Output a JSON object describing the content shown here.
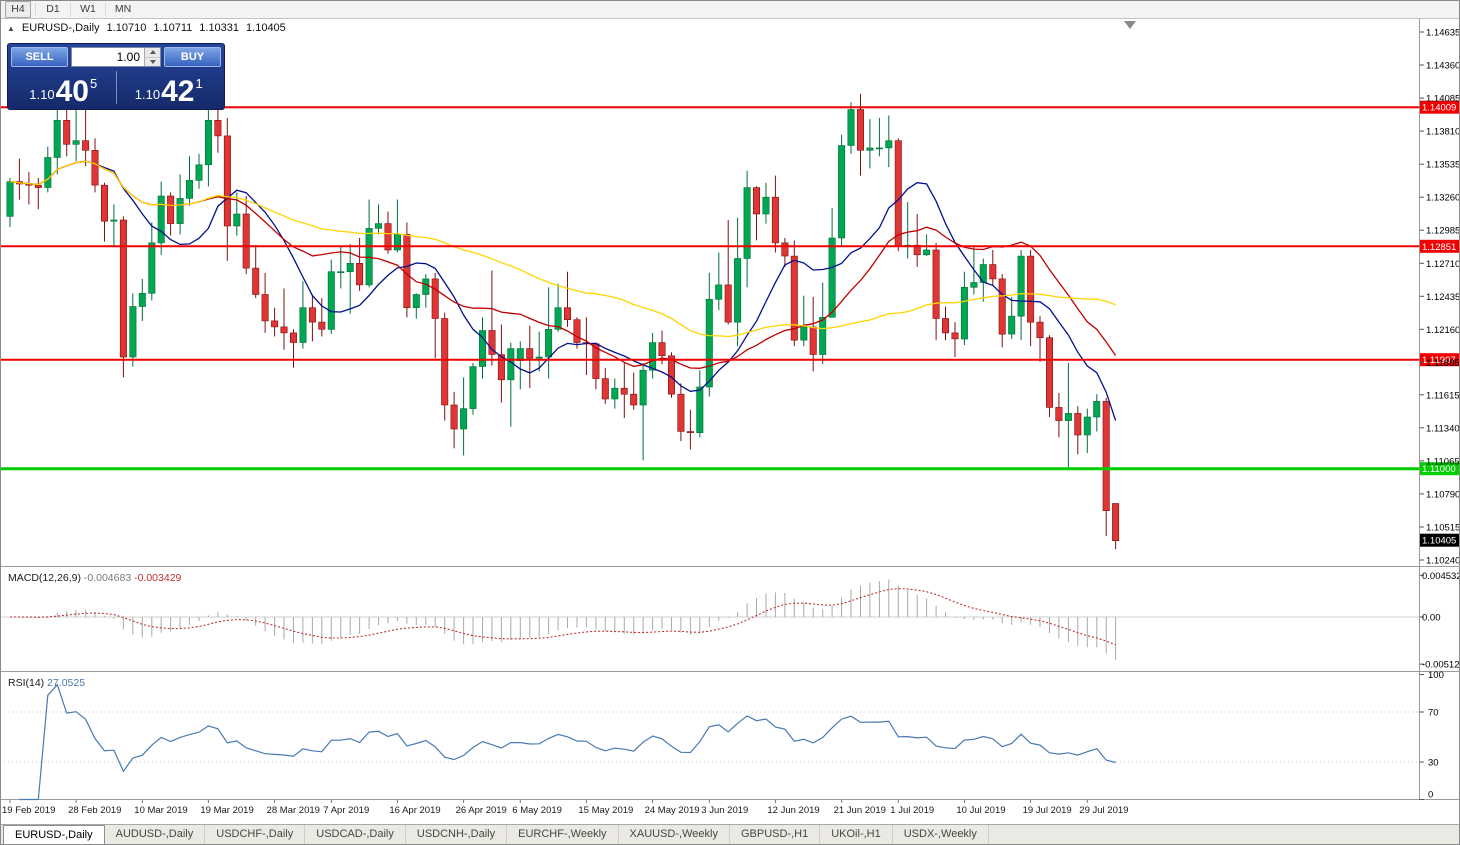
{
  "toolbar": {
    "timeframes": [
      "H4",
      "D1",
      "W1",
      "MN"
    ]
  },
  "chart_header": {
    "collapse_icon": "▲",
    "symbol": "EURUSD-,Daily",
    "open": "1.10710",
    "high": "1.10711",
    "low": "1.10331",
    "close": "1.10405"
  },
  "one_click": {
    "sell_label": "SELL",
    "buy_label": "BUY",
    "volume": "1.00",
    "sell_price": {
      "base": "1.10",
      "big": "40",
      "sup": "5"
    },
    "buy_price": {
      "base": "1.10",
      "big": "42",
      "sup": "1"
    }
  },
  "price_axis": [
    "1.14635",
    "1.14360",
    "1.14085",
    "1.13810",
    "1.13535",
    "1.13260",
    "1.12985",
    "1.12710",
    "1.12435",
    "1.12160",
    "1.11885",
    "1.11615",
    "1.11340",
    "1.11065",
    "1.10790",
    "1.10515",
    "1.10240"
  ],
  "hlines": [
    {
      "price": 1.14009,
      "label": "1.14009",
      "color": "#f00000",
      "width": 2
    },
    {
      "price": 1.12851,
      "label": "1.12851",
      "color": "#f00000",
      "width": 2
    },
    {
      "price": 1.11907,
      "label": "1.11907",
      "color": "#f00000",
      "width": 2
    },
    {
      "price": 1.11,
      "label": "1.11000",
      "color": "#00ce00",
      "width": 3
    }
  ],
  "current_price_tag": {
    "price": 1.10405,
    "label": "1.10405",
    "bg": "#000000",
    "fg": "#ffffff"
  },
  "indicators": {
    "macd": {
      "label": "MACD(12,26,9)",
      "value_main": "-0.004683",
      "value_signal": "-0.003429",
      "axis_labels": [
        "0.004532",
        "0.00",
        "-0.005122"
      ],
      "fast": 12,
      "slow": 26,
      "signal": 9,
      "histogram_color": "#a9a9a9",
      "signal_color": "#c03030"
    },
    "rsi": {
      "label": "RSI(14)",
      "value": "27.0525",
      "period": 14,
      "axis_labels": [
        "100",
        "70",
        "30",
        "0"
      ],
      "levels": [
        70,
        30
      ],
      "line_color": "#4879b4"
    }
  },
  "time_axis": [
    {
      "i": 0,
      "label": "19 Feb 2019"
    },
    {
      "i": 7,
      "label": "28 Feb 2019"
    },
    {
      "i": 14,
      "label": "10 Mar 2019"
    },
    {
      "i": 21,
      "label": "19 Mar 2019"
    },
    {
      "i": 28,
      "label": "28 Mar 2019"
    },
    {
      "i": 34,
      "label": "7 Apr 2019"
    },
    {
      "i": 41,
      "label": "16 Apr 2019"
    },
    {
      "i": 48,
      "label": "26 Apr 2019"
    },
    {
      "i": 54,
      "label": "6 May 2019"
    },
    {
      "i": 61,
      "label": "15 May 2019"
    },
    {
      "i": 68,
      "label": "24 May 2019"
    },
    {
      "i": 74,
      "label": "3 Jun 2019"
    },
    {
      "i": 81,
      "label": "12 Jun 2019"
    },
    {
      "i": 88,
      "label": "21 Jun 2019"
    },
    {
      "i": 94,
      "label": "1 Jul 2019"
    },
    {
      "i": 101,
      "label": "10 Jul 2019"
    },
    {
      "i": 108,
      "label": "19 Jul 2019"
    },
    {
      "i": 114,
      "label": "29 Jul 2019"
    }
  ],
  "tabs": [
    {
      "label": "EURUSD-,Daily",
      "active": true
    },
    {
      "label": "AUDUSD-,Daily"
    },
    {
      "label": "USDCHF-,Daily"
    },
    {
      "label": "USDCAD-,Daily"
    },
    {
      "label": "USDCNH-,Daily"
    },
    {
      "label": "EURCHF-,Weekly"
    },
    {
      "label": "XAUUSD-,Weekly"
    },
    {
      "label": "GBPUSD-,H1"
    },
    {
      "label": "UKOil-,H1"
    },
    {
      "label": "USDX-,Weekly"
    }
  ],
  "chart_data": {
    "type": "candlestick",
    "symbol": "EURUSD",
    "timeframe": "Daily",
    "y_top": 1.14635,
    "y_bottom": 1.1024,
    "bull_color": "#00a651",
    "bull_edge": "#00703a",
    "bear_color": "#e03535",
    "bear_edge": "#7e1010",
    "ma": [
      {
        "type": "sma",
        "period": 10,
        "color": "#00118c"
      },
      {
        "type": "sma",
        "period": 21,
        "color": "#c00000"
      },
      {
        "type": "sma",
        "period": 50,
        "color": "#ffd400"
      }
    ],
    "candles": [
      [
        "2019.02.19",
        1.131,
        1.1342,
        1.1301,
        1.1339
      ],
      [
        "2019.02.20",
        1.1339,
        1.1358,
        1.1324,
        1.1337
      ],
      [
        "2019.02.21",
        1.1337,
        1.1347,
        1.132,
        1.1336
      ],
      [
        "2019.02.22",
        1.1336,
        1.1342,
        1.1316,
        1.1334
      ],
      [
        "2019.02.25",
        1.1334,
        1.1368,
        1.133,
        1.1359
      ],
      [
        "2019.02.26",
        1.1359,
        1.1404,
        1.1345,
        1.139
      ],
      [
        "2019.02.27",
        1.139,
        1.1403,
        1.136,
        1.137
      ],
      [
        "2019.02.28",
        1.137,
        1.14,
        1.1356,
        1.1373
      ],
      [
        "2019.03.01",
        1.1373,
        1.141,
        1.1352,
        1.1365
      ],
      [
        "2019.03.04",
        1.1365,
        1.1375,
        1.133,
        1.1336
      ],
      [
        "2019.03.05",
        1.1336,
        1.1338,
        1.1289,
        1.1306
      ],
      [
        "2019.03.06",
        1.1306,
        1.132,
        1.1285,
        1.1307
      ],
      [
        "2019.03.07",
        1.1307,
        1.131,
        1.1176,
        1.1193
      ],
      [
        "2019.03.08",
        1.1193,
        1.1246,
        1.1185,
        1.1235
      ],
      [
        "2019.03.11",
        1.1235,
        1.1258,
        1.1223,
        1.1246
      ],
      [
        "2019.03.12",
        1.1246,
        1.1305,
        1.124,
        1.1288
      ],
      [
        "2019.03.13",
        1.1288,
        1.1339,
        1.1278,
        1.1327
      ],
      [
        "2019.03.14",
        1.1327,
        1.133,
        1.1294,
        1.1304
      ],
      [
        "2019.03.15",
        1.1304,
        1.1345,
        1.1295,
        1.1325
      ],
      [
        "2019.03.18",
        1.1325,
        1.136,
        1.1319,
        1.134
      ],
      [
        "2019.03.19",
        1.134,
        1.1362,
        1.1333,
        1.1353
      ],
      [
        "2019.03.20",
        1.1353,
        1.1405,
        1.1335,
        1.139
      ],
      [
        "2019.03.21",
        1.139,
        1.1412,
        1.1363,
        1.1377
      ],
      [
        "2019.03.22",
        1.1377,
        1.1392,
        1.1273,
        1.1302
      ],
      [
        "2019.03.25",
        1.1302,
        1.133,
        1.1294,
        1.1312
      ],
      [
        "2019.03.26",
        1.1312,
        1.1327,
        1.1262,
        1.1267
      ],
      [
        "2019.03.27",
        1.1267,
        1.1286,
        1.1242,
        1.1245
      ],
      [
        "2019.03.28",
        1.1245,
        1.1263,
        1.1213,
        1.1223
      ],
      [
        "2019.03.29",
        1.1223,
        1.1234,
        1.121,
        1.1218
      ],
      [
        "2019.04.01",
        1.1218,
        1.125,
        1.1199,
        1.1213
      ],
      [
        "2019.04.02",
        1.1213,
        1.1216,
        1.1184,
        1.1205
      ],
      [
        "2019.04.03",
        1.1205,
        1.1256,
        1.12,
        1.1234
      ],
      [
        "2019.04.04",
        1.1234,
        1.1244,
        1.1206,
        1.1222
      ],
      [
        "2019.04.05",
        1.1222,
        1.1242,
        1.121,
        1.1216
      ],
      [
        "2019.04.08",
        1.1216,
        1.1274,
        1.1212,
        1.1264
      ],
      [
        "2019.04.09",
        1.1264,
        1.1285,
        1.125,
        1.1264
      ],
      [
        "2019.04.10",
        1.1264,
        1.1287,
        1.1229,
        1.1271
      ],
      [
        "2019.04.11",
        1.1271,
        1.1292,
        1.1248,
        1.1253
      ],
      [
        "2019.04.12",
        1.1253,
        1.1324,
        1.1251,
        1.13
      ],
      [
        "2019.04.15",
        1.13,
        1.132,
        1.1295,
        1.1304
      ],
      [
        "2019.04.16",
        1.1304,
        1.1314,
        1.1279,
        1.1282
      ],
      [
        "2019.04.17",
        1.1282,
        1.1324,
        1.128,
        1.1295
      ],
      [
        "2019.04.18",
        1.1295,
        1.1305,
        1.1226,
        1.1234
      ],
      [
        "2019.04.19",
        1.1234,
        1.1246,
        1.1225,
        1.1245
      ],
      [
        "2019.04.22",
        1.1245,
        1.1262,
        1.1234,
        1.1258
      ],
      [
        "2019.04.23",
        1.1258,
        1.1263,
        1.1192,
        1.1225
      ],
      [
        "2019.04.24",
        1.1225,
        1.123,
        1.114,
        1.1153
      ],
      [
        "2019.04.25",
        1.1153,
        1.1164,
        1.1117,
        1.1133
      ],
      [
        "2019.04.26",
        1.1133,
        1.1176,
        1.1111,
        1.115
      ],
      [
        "2019.04.29",
        1.115,
        1.1188,
        1.1145,
        1.1185
      ],
      [
        "2019.04.30",
        1.1185,
        1.1226,
        1.1175,
        1.1215
      ],
      [
        "2019.05.01",
        1.1215,
        1.1265,
        1.1186,
        1.1195
      ],
      [
        "2019.05.02",
        1.1195,
        1.122,
        1.1155,
        1.1174
      ],
      [
        "2019.05.03",
        1.1174,
        1.1205,
        1.1135,
        1.12
      ],
      [
        "2019.05.06",
        1.119,
        1.1206,
        1.1166,
        1.12
      ],
      [
        "2019.05.07",
        1.12,
        1.1219,
        1.1167,
        1.1192
      ],
      [
        "2019.05.08",
        1.1192,
        1.1214,
        1.1181,
        1.1193
      ],
      [
        "2019.05.09",
        1.1193,
        1.1251,
        1.1175,
        1.1216
      ],
      [
        "2019.05.10",
        1.1216,
        1.1254,
        1.1214,
        1.1234
      ],
      [
        "2019.05.13",
        1.1234,
        1.1264,
        1.1218,
        1.1224
      ],
      [
        "2019.05.14",
        1.1224,
        1.1226,
        1.12,
        1.1205
      ],
      [
        "2019.05.15",
        1.1205,
        1.1226,
        1.1178,
        1.1204
      ],
      [
        "2019.05.16",
        1.1204,
        1.1205,
        1.1166,
        1.1175
      ],
      [
        "2019.05.17",
        1.1175,
        1.1184,
        1.1154,
        1.1158
      ],
      [
        "2019.05.20",
        1.1158,
        1.1175,
        1.115,
        1.1167
      ],
      [
        "2019.05.21",
        1.1167,
        1.1188,
        1.1142,
        1.1162
      ],
      [
        "2019.05.22",
        1.1162,
        1.118,
        1.1149,
        1.1153
      ],
      [
        "2019.05.23",
        1.1153,
        1.1188,
        1.1107,
        1.1182
      ],
      [
        "2019.05.24",
        1.1182,
        1.1213,
        1.1175,
        1.1205
      ],
      [
        "2019.05.27",
        1.1205,
        1.1215,
        1.1187,
        1.1194
      ],
      [
        "2019.05.28",
        1.1194,
        1.1197,
        1.1159,
        1.1162
      ],
      [
        "2019.05.29",
        1.1162,
        1.1171,
        1.1123,
        1.1131
      ],
      [
        "2019.05.30",
        1.1131,
        1.1149,
        1.1116,
        1.113
      ],
      [
        "2019.05.31",
        1.113,
        1.1182,
        1.1126,
        1.1168
      ],
      [
        "2019.06.03",
        1.1168,
        1.1263,
        1.116,
        1.1241
      ],
      [
        "2019.06.04",
        1.1241,
        1.128,
        1.1232,
        1.1253
      ],
      [
        "2019.06.05",
        1.1253,
        1.1307,
        1.122,
        1.1222
      ],
      [
        "2019.06.06",
        1.1222,
        1.1309,
        1.1202,
        1.1275
      ],
      [
        "2019.06.07",
        1.1275,
        1.1348,
        1.1251,
        1.1334
      ],
      [
        "2019.06.10",
        1.1334,
        1.1335,
        1.129,
        1.1312
      ],
      [
        "2019.06.11",
        1.1312,
        1.1338,
        1.1304,
        1.1326
      ],
      [
        "2019.06.12",
        1.1326,
        1.1344,
        1.128,
        1.1288
      ],
      [
        "2019.06.13",
        1.1288,
        1.1292,
        1.1268,
        1.1277
      ],
      [
        "2019.06.14",
        1.1277,
        1.129,
        1.1202,
        1.1207
      ],
      [
        "2019.06.17",
        1.1207,
        1.1244,
        1.1202,
        1.1218
      ],
      [
        "2019.06.18",
        1.1218,
        1.1243,
        1.1181,
        1.1195
      ],
      [
        "2019.06.19",
        1.1195,
        1.1255,
        1.1187,
        1.1226
      ],
      [
        "2019.06.20",
        1.1226,
        1.1317,
        1.1226,
        1.1292
      ],
      [
        "2019.06.21",
        1.1292,
        1.1378,
        1.1285,
        1.1369
      ],
      [
        "2019.06.24",
        1.1369,
        1.1405,
        1.1362,
        1.1399
      ],
      [
        "2019.06.25",
        1.1399,
        1.1412,
        1.1344,
        1.1365
      ],
      [
        "2019.06.26",
        1.1365,
        1.1391,
        1.135,
        1.1367
      ],
      [
        "2019.06.27",
        1.1367,
        1.1392,
        1.136,
        1.1367
      ],
      [
        "2019.06.28",
        1.1367,
        1.1394,
        1.1351,
        1.1373
      ],
      [
        "2019.07.01",
        1.1373,
        1.1375,
        1.1281,
        1.1285
      ],
      [
        "2019.07.02",
        1.1285,
        1.1322,
        1.1275,
        1.1286
      ],
      [
        "2019.07.03",
        1.1286,
        1.1312,
        1.1268,
        1.1278
      ],
      [
        "2019.07.04",
        1.1278,
        1.1295,
        1.1277,
        1.1282
      ],
      [
        "2019.07.05",
        1.1282,
        1.1288,
        1.1207,
        1.1225
      ],
      [
        "2019.07.08",
        1.1225,
        1.1235,
        1.1207,
        1.1213
      ],
      [
        "2019.07.09",
        1.1213,
        1.1222,
        1.1193,
        1.1208
      ],
      [
        "2019.07.10",
        1.1208,
        1.1264,
        1.1203,
        1.1251
      ],
      [
        "2019.07.11",
        1.1251,
        1.1285,
        1.1245,
        1.1255
      ],
      [
        "2019.07.12",
        1.1255,
        1.1275,
        1.1239,
        1.127
      ],
      [
        "2019.07.15",
        1.127,
        1.1282,
        1.1252,
        1.1258
      ],
      [
        "2019.07.16",
        1.1258,
        1.1262,
        1.1201,
        1.1212
      ],
      [
        "2019.07.17",
        1.1212,
        1.1243,
        1.1208,
        1.1227
      ],
      [
        "2019.07.18",
        1.1227,
        1.1282,
        1.1207,
        1.1277
      ],
      [
        "2019.07.19",
        1.1277,
        1.1282,
        1.1202,
        1.1222
      ],
      [
        "2019.07.22",
        1.1222,
        1.1227,
        1.1189,
        1.1209
      ],
      [
        "2019.07.23",
        1.1209,
        1.1211,
        1.1143,
        1.1151
      ],
      [
        "2019.07.24",
        1.1151,
        1.1163,
        1.1126,
        1.114
      ],
      [
        "2019.07.25",
        1.114,
        1.1188,
        1.1101,
        1.1146
      ],
      [
        "2019.07.26",
        1.1146,
        1.1152,
        1.1112,
        1.1128
      ],
      [
        "2019.07.29",
        1.1128,
        1.115,
        1.1113,
        1.1143
      ],
      [
        "2019.07.30",
        1.1143,
        1.1162,
        1.1131,
        1.1156
      ],
      [
        "2019.07.31",
        1.1156,
        1.1159,
        1.1044,
        1.1065
      ],
      [
        "2019.08.01",
        1.1071,
        1.1071,
        1.1033,
        1.104
      ]
    ]
  }
}
